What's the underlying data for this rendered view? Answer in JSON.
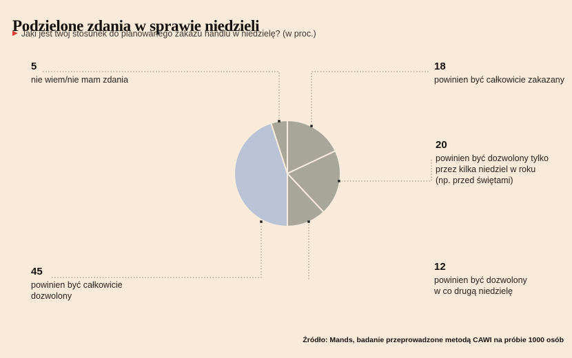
{
  "header": {
    "title": "Podzielone zdania w sprawie niedzieli",
    "subtitle": "Jaki jest twój stosunek do planowanego zakazu handlu w niedzielę? (w proc.)"
  },
  "chart_data": {
    "type": "pie",
    "title": "Podzielone zdania w sprawie niedzieli",
    "question": "Jaki jest twój stosunek do planowanego zakazu handlu w niedzielę? (w proc.)",
    "unit": "percent",
    "start_angle_deg": 0,
    "direction": "clockwise",
    "legend_position": "callouts",
    "slices": [
      {
        "label": "powinien być całkowicie zakazany",
        "value": 18,
        "color": "#a7a699"
      },
      {
        "label": "powinien być dozwolony tylko przez kilka niedziel w roku (np. przed świętami)",
        "value": 20,
        "color": "#a7a699"
      },
      {
        "label": "powinien być dozwolony w co drugą niedzielę",
        "value": 12,
        "color": "#a7a699"
      },
      {
        "label": "powinien być całkowicie dozwolony",
        "value": 45,
        "color": "#b9c3d5"
      },
      {
        "label": "nie wiem/nie mam zdania",
        "value": 5,
        "color": "#a7a699"
      }
    ],
    "divider_color": "#f7ecdd"
  },
  "callouts": {
    "c5": {
      "value": "5",
      "lines": [
        "nie wiem/nie mam zdania"
      ]
    },
    "c18": {
      "value": "18",
      "lines": [
        "powinien być całkowicie zakazany"
      ]
    },
    "c20": {
      "value": "20",
      "lines": [
        "powinien być dozwolony tylko",
        "przez kilka niedziel w roku",
        "(np. przed świętami)"
      ]
    },
    "c12": {
      "value": "12",
      "lines": [
        "powinien być dozwolony",
        "w co drugą niedzielę"
      ]
    },
    "c45": {
      "value": "45",
      "lines": [
        "powinien być całkowicie",
        "dozwolony"
      ]
    }
  },
  "footer": {
    "source": "Źródło: Mands, badanie przeprowadzone metodą CAWI na próbie 1000 osób"
  },
  "colors": {
    "background": "#f9ead9",
    "accent_red": "#e03a2f",
    "text": "#1d1d1b",
    "leader_line": "#8c8374",
    "marker": "#1d1d1b"
  }
}
